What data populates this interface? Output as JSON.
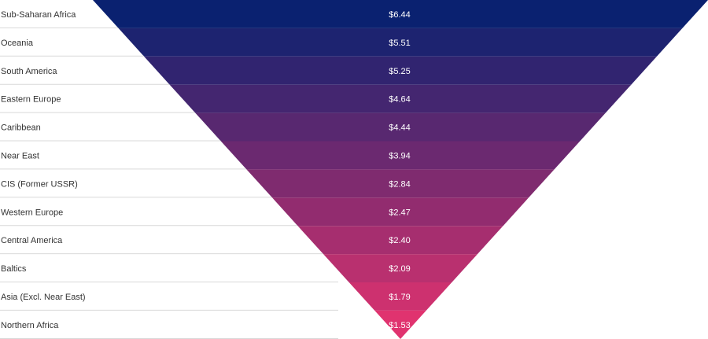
{
  "chart_data": {
    "type": "funnel",
    "title": "",
    "categories": [
      "Sub-Saharan Africa",
      "Oceania",
      "South America",
      "Eastern Europe",
      "Caribbean",
      "Near East",
      "CIS (Former USSR)",
      "Western Europe",
      "Central America",
      "Baltics",
      "Asia (Excl. Near East)",
      "Northern Africa"
    ],
    "values": [
      6.44,
      5.51,
      5.25,
      4.64,
      4.44,
      3.94,
      2.84,
      2.47,
      2.4,
      2.09,
      1.79,
      1.53
    ],
    "value_labels": [
      "$6.44",
      "$5.51",
      "$5.25",
      "$4.64",
      "$4.44",
      "$3.94",
      "$2.84",
      "$2.47",
      "$2.40",
      "$2.09",
      "$1.79",
      "$1.53"
    ],
    "colors": {
      "top": "#0a2170",
      "bottom": "#e0336f",
      "separator": "#d9d9d9",
      "label_text": "#333333",
      "value_text": "#ffffff"
    }
  }
}
